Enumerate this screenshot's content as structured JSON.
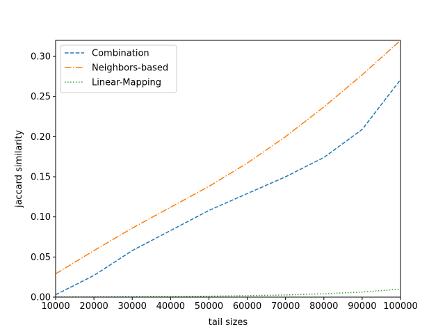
{
  "chart_data": {
    "type": "line",
    "title": "",
    "xlabel": "tail sizes",
    "ylabel": "jaccard similarity",
    "x": [
      10000,
      20000,
      30000,
      40000,
      50000,
      60000,
      70000,
      80000,
      90000,
      100000
    ],
    "xlim": [
      10000,
      100000
    ],
    "ylim": [
      0,
      0.32
    ],
    "x_ticks": [
      10000,
      20000,
      30000,
      40000,
      50000,
      60000,
      70000,
      80000,
      90000,
      100000
    ],
    "y_ticks": [
      0.0,
      0.05,
      0.1,
      0.15,
      0.2,
      0.25,
      0.3
    ],
    "x_tick_labels": [
      "10000",
      "20000",
      "30000",
      "40000",
      "50000",
      "60000",
      "70000",
      "80000",
      "90000",
      "100000"
    ],
    "y_tick_labels": [
      "0.00",
      "0.05",
      "0.10",
      "0.15",
      "0.20",
      "0.25",
      "0.30"
    ],
    "grid": false,
    "legend": "top-left",
    "series": [
      {
        "name": "Combination",
        "color": "#1f77b4",
        "dash": "dashed",
        "values": [
          0.003,
          0.027,
          0.058,
          0.083,
          0.108,
          0.129,
          0.15,
          0.174,
          0.209,
          0.271
        ]
      },
      {
        "name": "Neighbors-based",
        "color": "#ff7f0e",
        "dash": "dashdot",
        "values": [
          0.029,
          0.058,
          0.086,
          0.112,
          0.138,
          0.167,
          0.2,
          0.237,
          0.277,
          0.32
        ]
      },
      {
        "name": "Linear-Mapping",
        "color": "#2ca02c",
        "dash": "dotted",
        "values": [
          0.0002,
          0.0004,
          0.0006,
          0.0008,
          0.0012,
          0.0018,
          0.0027,
          0.0042,
          0.0063,
          0.01
        ]
      }
    ]
  }
}
